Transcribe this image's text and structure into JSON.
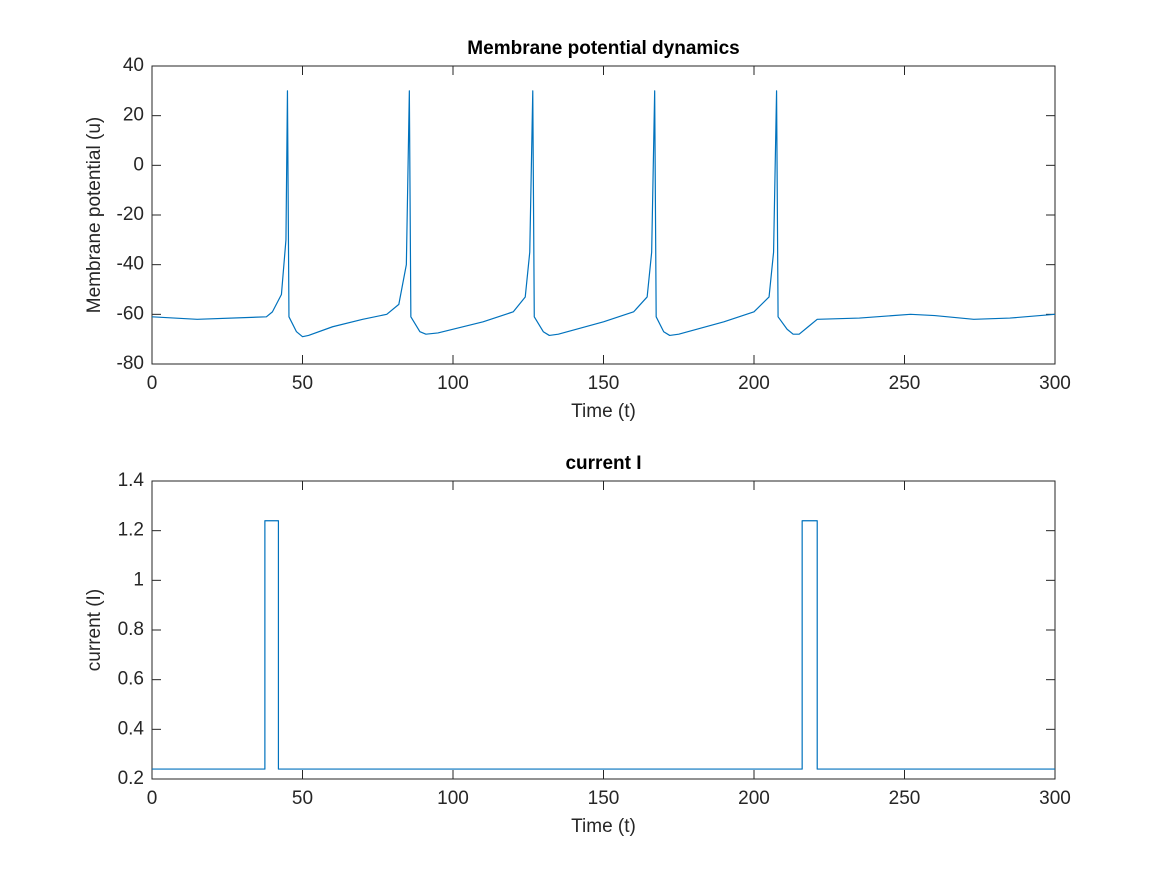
{
  "chart_data": [
    {
      "type": "line",
      "title": "Membrane potential dynamics",
      "xlabel": "Time (t)",
      "ylabel": "Membrane potential (u)",
      "color": "#0072bd",
      "xlim": [
        0,
        300
      ],
      "xticks": [
        0,
        50,
        100,
        150,
        200,
        250,
        300
      ],
      "ylim": [
        -80,
        40
      ],
      "yticks": [
        -80,
        -60,
        -40,
        -20,
        0,
        20,
        40
      ],
      "x": [
        0,
        15,
        38,
        40,
        43,
        44.5,
        45,
        45.5,
        48,
        50,
        52,
        60,
        70,
        78,
        82,
        84.5,
        85.5,
        86,
        89,
        91,
        95,
        110,
        120,
        124,
        125.5,
        126.5,
        127,
        130,
        132,
        135,
        150,
        160,
        164.5,
        166,
        167,
        167.5,
        170,
        172,
        175,
        190,
        200,
        205,
        206.5,
        207.5,
        208,
        211,
        213,
        215,
        218,
        221,
        235,
        252,
        260,
        273,
        285,
        300
      ],
      "values": [
        -61,
        -62,
        -61,
        -59,
        -52,
        -30,
        30,
        -61,
        -67,
        -69,
        -68.5,
        -65,
        -62,
        -60,
        -56,
        -40,
        30,
        -61,
        -67,
        -68,
        -67.5,
        -63,
        -59,
        -53,
        -35,
        30,
        -61,
        -67,
        -68.5,
        -68,
        -63,
        -59,
        -53,
        -35,
        30,
        -61,
        -67,
        -68.5,
        -68,
        -63,
        -59,
        -53,
        -35,
        30,
        -61,
        -66,
        -68,
        -68,
        -65,
        -62,
        -61.5,
        -60,
        -60.5,
        -62,
        -61.5,
        -60
      ]
    },
    {
      "type": "line",
      "title": "current I",
      "xlabel": "Time (t)",
      "ylabel": "current (I)",
      "color": "#0072bd",
      "xlim": [
        0,
        300
      ],
      "xticks": [
        0,
        50,
        100,
        150,
        200,
        250,
        300
      ],
      "ylim": [
        0.2,
        1.4
      ],
      "yticks": [
        0.2,
        0.4,
        0.6,
        0.8,
        1,
        1.2,
        1.4
      ],
      "x": [
        0,
        37.5,
        37.5,
        42,
        42,
        216,
        216,
        221,
        221,
        300
      ],
      "values": [
        0.24,
        0.24,
        1.24,
        1.24,
        0.24,
        0.24,
        1.24,
        1.24,
        0.24,
        0.24
      ]
    }
  ]
}
